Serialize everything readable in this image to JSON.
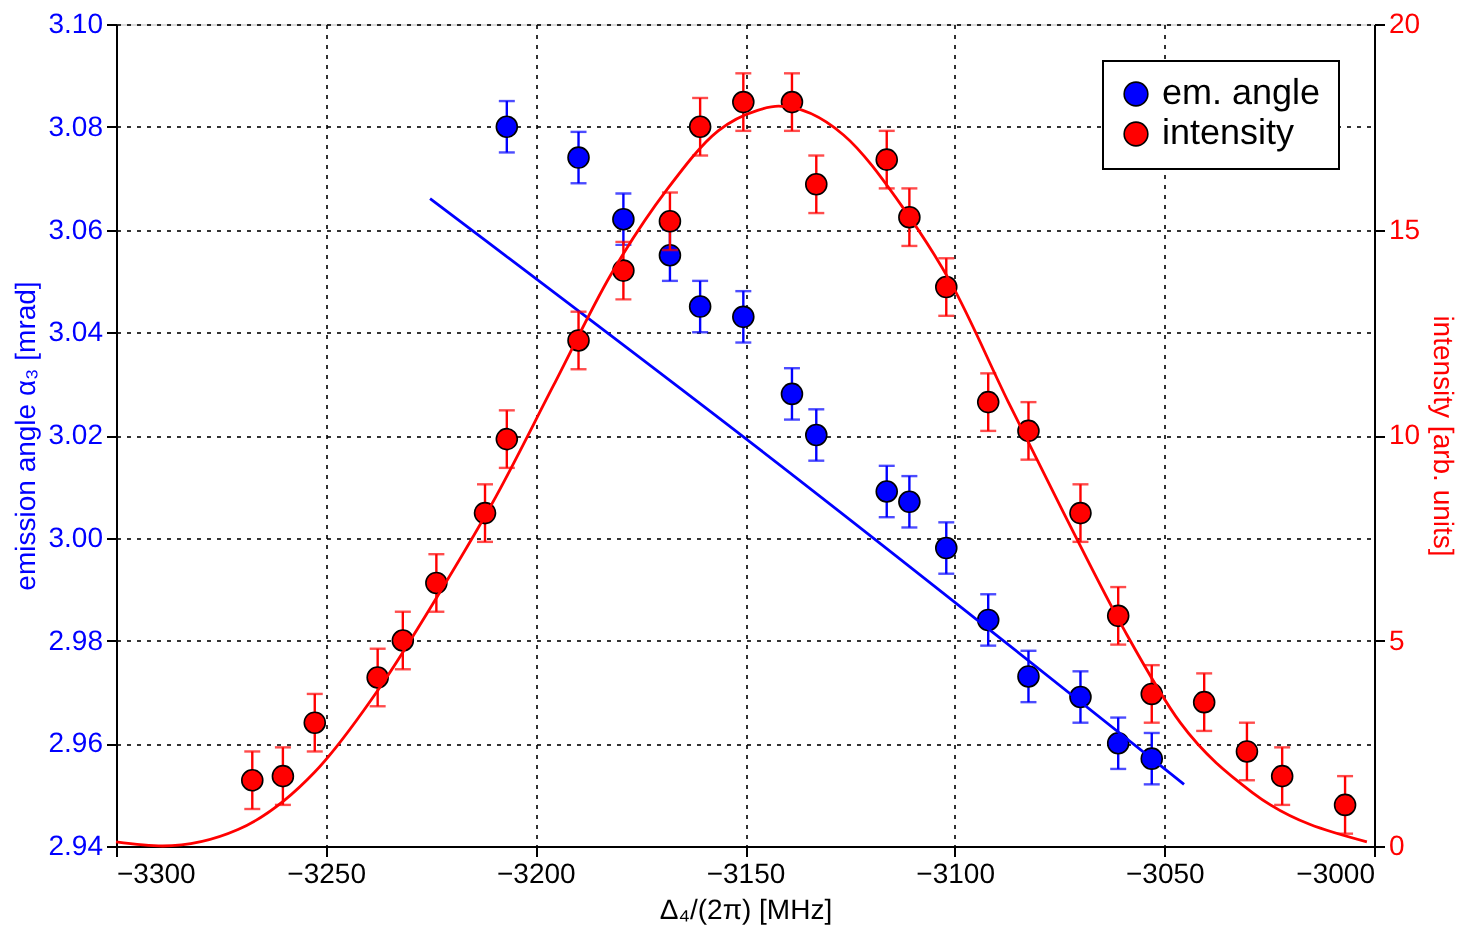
{
  "chart_data": {
    "type": "scatter",
    "xlabel": "Δ₄/(2π) [MHz]",
    "ylabel": "emission angle α₃ [mrad]",
    "y2label": "intensity [arb. units]",
    "xlim": [
      -3300,
      -3000
    ],
    "xticks": [
      {
        "value": -3300,
        "label": "−3300"
      },
      {
        "value": -3250,
        "label": "−3250"
      },
      {
        "value": -3200,
        "label": "−3200"
      },
      {
        "value": -3150,
        "label": "−3150"
      },
      {
        "value": -3100,
        "label": "−3100"
      },
      {
        "value": -3050,
        "label": "−3050"
      },
      {
        "value": -3000,
        "label": "−3000"
      }
    ],
    "ylim": [
      2.94,
      3.1
    ],
    "yticks": [
      2.94,
      2.96,
      2.98,
      {
        "value": 3.0,
        "label": "3.00"
      },
      3.02,
      3.04,
      3.06,
      3.08,
      {
        "value": 3.1,
        "label": "3.10"
      }
    ],
    "y2lim": [
      0,
      20
    ],
    "y2ticks": [
      0,
      5,
      10,
      15,
      20
    ],
    "grid": true,
    "legend": "top right",
    "line_style": "solid",
    "series": [
      {
        "name": "em. angle",
        "marker": "circle",
        "color": "#0000ff",
        "x": [
          -3206.8,
          -3189.7,
          -3179,
          -3167.9,
          -3160.7,
          -3150.4,
          -3138.8,
          -3133,
          -3116.2,
          -3110.8,
          -3102,
          -3092,
          -3082.4,
          -3070,
          -3061,
          -3053
        ],
        "values": [
          3.08,
          3.074,
          3.062,
          3.055,
          3.045,
          3.043,
          3.028,
          3.02,
          3.009,
          3.007,
          2.998,
          2.984,
          2.973,
          2.969,
          2.96,
          2.957
        ],
        "errors": [
          0.005,
          0.005,
          0.005,
          0.005,
          0.005,
          0.005,
          0.005,
          0.005,
          0.005,
          0.005,
          0.005,
          0.005,
          0.005,
          0.005,
          0.005,
          0.005
        ]
      },
      {
        "type": "line",
        "color": "#0000ff",
        "x": [
          -3225.1,
          -3146.2,
          -3045.3
        ],
        "values": [
          3.066,
          3.017,
          2.952
        ]
      },
      {
        "name": "intensity",
        "marker": "circle",
        "axis": "y2",
        "color": "#ff0000",
        "x": [
          -3267.5,
          -3260.2,
          -3252.6,
          -3237.6,
          -3231.6,
          -3223.6,
          -3212,
          -3206.8,
          -3189.7,
          -3179,
          -3167.9,
          -3160.7,
          -3150.4,
          -3138.8,
          -3133,
          -3116.2,
          -3110.8,
          -3102,
          -3092,
          -3082.4,
          -3070,
          -3061,
          -3053,
          -3040.5,
          -3030.3,
          -3021.9,
          -3006.9
        ],
        "values": [
          1.6,
          1.7,
          3.0,
          4.1,
          5.0,
          6.4,
          8.1,
          9.9,
          12.3,
          14.0,
          15.2,
          17.5,
          18.1,
          18.1,
          16.1,
          16.7,
          15.3,
          13.6,
          10.8,
          10.1,
          8.1,
          5.6,
          3.7,
          3.5,
          2.3,
          1.7,
          1.0
        ],
        "errors": [
          0.7,
          0.7,
          0.7,
          0.7,
          0.7,
          0.7,
          0.7,
          0.7,
          0.7,
          0.7,
          0.7,
          0.7,
          0.7,
          0.7,
          0.7,
          0.7,
          0.7,
          0.7,
          0.7,
          0.7,
          0.7,
          0.7,
          0.7,
          0.7,
          0.7,
          0.7,
          0.7
        ]
      },
      {
        "type": "line",
        "axis": "y2",
        "color": "#ff0000",
        "x": [
          -3300,
          -3288.9,
          -3270.9,
          -3252.6,
          -3236.8,
          -3223.2,
          -3209.4,
          -3195.7,
          -3182,
          -3168.4,
          -3156.4,
          -3147,
          -3142,
          -3126.5,
          -3112.8,
          -3100.9,
          -3087.2,
          -3073.5,
          -3059.8,
          -3046.2,
          -3029,
          -3001.7
        ],
        "values": [
          0.1,
          0.0,
          0.4,
          1.8,
          3.9,
          6.1,
          8.5,
          11.2,
          13.9,
          16.0,
          17.4,
          17.9,
          18.0,
          17.3,
          15.6,
          13.7,
          10.8,
          8.0,
          5.3,
          3.0,
          1.3,
          0.1
        ]
      }
    ]
  }
}
